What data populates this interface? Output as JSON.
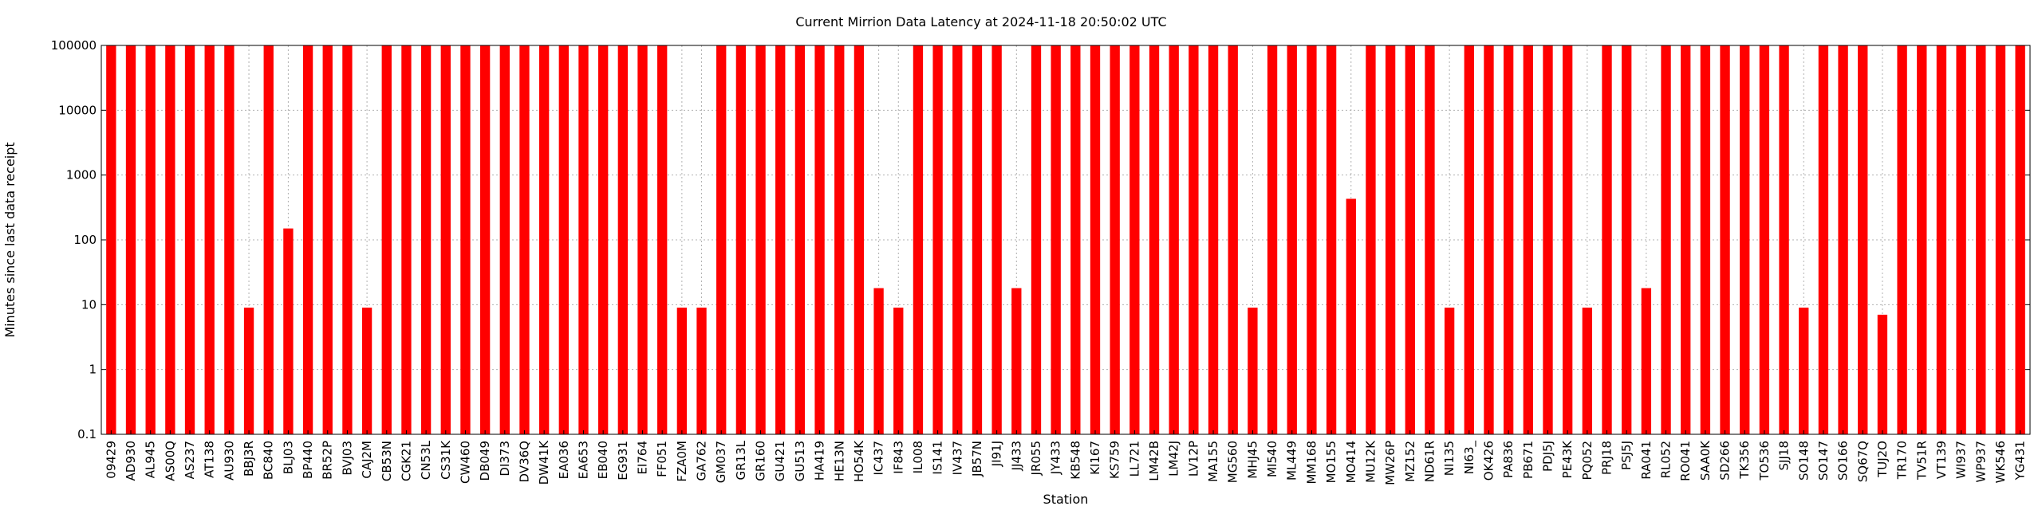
{
  "chart_data": {
    "type": "bar",
    "title": "Current Mirrion Data Latency at 2024-11-18 20:50:02 UTC",
    "xlabel": "Station",
    "ylabel": "Minutes since last data receipt",
    "yscale": "log",
    "ylim": [
      0.1,
      100000
    ],
    "yticks": [
      0.1,
      1,
      10,
      100,
      1000,
      10000,
      100000
    ],
    "ytick_labels": [
      "0.1",
      "1",
      "10",
      "100",
      "1000",
      "10000",
      "100000"
    ],
    "grid": true,
    "bar_color": "#ff0000",
    "categories": [
      "09429",
      "AD930",
      "AL945",
      "AS00Q",
      "AS237",
      "AT138",
      "AU930",
      "BBJ3R",
      "BC840",
      "BLJ03",
      "BP440",
      "BR52P",
      "BVJ03",
      "CAJ2M",
      "CB53N",
      "CGK21",
      "CN53L",
      "CS31K",
      "CW460",
      "DB049",
      "DI373",
      "DV36Q",
      "DW41K",
      "EA036",
      "EA653",
      "EB040",
      "EG931",
      "EI764",
      "FF051",
      "FZA0M",
      "GA762",
      "GM037",
      "GR13L",
      "GR160",
      "GU421",
      "GU513",
      "HA419",
      "HE13N",
      "HO54K",
      "IC437",
      "IF843",
      "IL008",
      "IS141",
      "IV437",
      "JB57N",
      "JI91J",
      "JJ433",
      "JR055",
      "JY433",
      "KB548",
      "KI167",
      "KS759",
      "LL721",
      "LM42B",
      "LM42J",
      "LV12P",
      "MA155",
      "MG560",
      "MHJ45",
      "MI540",
      "ML449",
      "MM168",
      "MO155",
      "MO414",
      "MU12K",
      "MW26P",
      "MZ152",
      "ND61R",
      "NI135",
      "NI63_",
      "OK426",
      "PA836",
      "PB671",
      "PDJ5J",
      "PE43K",
      "PQ052",
      "PRJ18",
      "PSJ5J",
      "RA041",
      "RL052",
      "RO041",
      "SAA0K",
      "SD266",
      "TK356",
      "TO536",
      "SJJ18",
      "SO148",
      "SO147",
      "SO166",
      "SQ67Q",
      "TUJ2O",
      "TR170",
      "TV51R",
      "VT139",
      "WI937",
      "WP937",
      "WK546",
      "YG431"
    ],
    "values": [
      100000,
      100000,
      100000,
      100000,
      100000,
      100000,
      100000,
      9,
      100000,
      150,
      100000,
      100000,
      100000,
      9,
      100000,
      100000,
      100000,
      100000,
      100000,
      100000,
      100000,
      100000,
      100000,
      100000,
      100000,
      100000,
      100000,
      100000,
      100000,
      9,
      9,
      100000,
      100000,
      100000,
      100000,
      100000,
      100000,
      100000,
      100000,
      18,
      9,
      100000,
      100000,
      100000,
      100000,
      100000,
      18,
      100000,
      100000,
      100000,
      100000,
      100000,
      100000,
      100000,
      100000,
      100000,
      100000,
      100000,
      9,
      100000,
      100000,
      100000,
      100000,
      430,
      100000,
      100000,
      100000,
      100000,
      9,
      100000,
      100000,
      100000,
      100000,
      100000,
      100000,
      9,
      100000,
      100000,
      18,
      100000,
      100000,
      100000,
      100000,
      100000,
      100000,
      100000,
      9,
      100000,
      100000,
      100000,
      7,
      100000,
      100000,
      100000,
      100000,
      100000,
      100000,
      100000
    ]
  }
}
